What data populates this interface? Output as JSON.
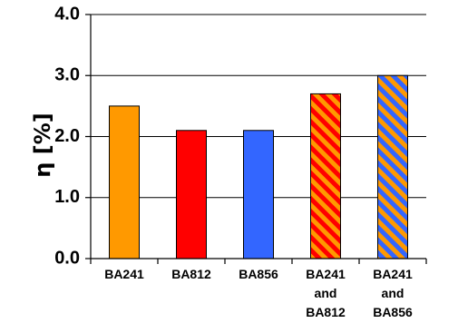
{
  "chart_data": {
    "type": "bar",
    "ylabel": "η [%]",
    "ylim": [
      0,
      4
    ],
    "yticks": [
      "0.0",
      "1.0",
      "2.0",
      "3.0",
      "4.0"
    ],
    "grid": true,
    "categories": [
      [
        "BA241"
      ],
      [
        "BA812"
      ],
      [
        "BA856"
      ],
      [
        "BA241",
        "and",
        "BA812"
      ],
      [
        "BA241",
        "and",
        "BA856"
      ]
    ],
    "values": [
      2.5,
      2.1,
      2.1,
      2.7,
      3.0
    ],
    "bar_styles": [
      {
        "fill": "#ff9900",
        "hatch": null
      },
      {
        "fill": "#ff0000",
        "hatch": null
      },
      {
        "fill": "#3366ff",
        "hatch": null
      },
      {
        "fill": "#ff0000",
        "hatch": "#ff9900"
      },
      {
        "fill": "#3366ff",
        "hatch": "#ff9900"
      }
    ]
  }
}
